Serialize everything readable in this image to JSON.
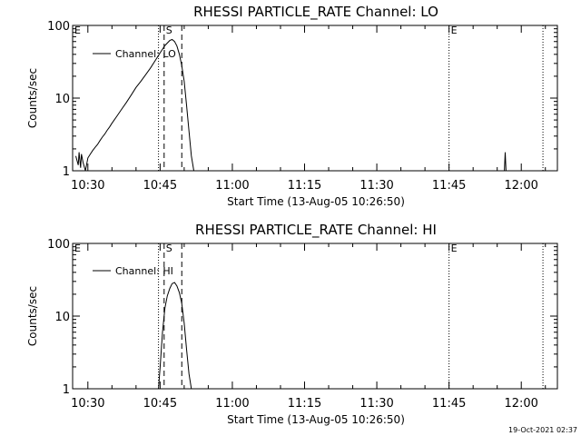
{
  "colors": {
    "background": "#ffffff",
    "foreground": "#000000"
  },
  "footer": {
    "timestamp": "19-Oct-2021 02:37"
  },
  "chart_data": [
    {
      "type": "line",
      "title": "RHESSI PARTICLE_RATE Channel: LO",
      "xlabel": "Start Time (13-Aug-05 10:26:50)",
      "ylabel": "Counts/sec",
      "y_scale": "log",
      "ylim": [
        1,
        100
      ],
      "xlim": [
        "10:26:50",
        "12:07:30"
      ],
      "x_ticks": [
        "10:30",
        "10:45",
        "11:00",
        "11:15",
        "11:30",
        "11:45",
        "12:00"
      ],
      "y_ticks": [
        "1",
        "10",
        "100"
      ],
      "legend": "Channel: LO",
      "legend_position": "top-left",
      "grid": false,
      "markers": [
        {
          "label": "E",
          "time": "10:26:50",
          "style": "dotted"
        },
        {
          "label": "",
          "time": "10:44:40",
          "style": "dotted"
        },
        {
          "label": "S",
          "time": "10:45:50",
          "style": "dashed"
        },
        {
          "label": "",
          "time": "10:49:30",
          "style": "dashed"
        },
        {
          "label": "E",
          "time": "11:45:00",
          "style": "dotted"
        },
        {
          "label": "",
          "time": "12:04:30",
          "style": "dotted"
        }
      ],
      "series": [
        {
          "name": "",
          "x": [
            "10:27:30",
            "10:28:00",
            "10:28:10",
            "10:28:30",
            "10:28:40",
            "10:29:00",
            "10:29:30",
            "10:30:00",
            "10:30:30",
            "10:31:00",
            "10:31:30",
            "10:32:00",
            "10:32:30",
            "10:33:00",
            "10:33:30",
            "10:34:00",
            "10:34:30",
            "10:35:00",
            "10:36:00",
            "10:37:00",
            "10:38:00",
            "10:39:00",
            "10:40:00",
            "10:41:00",
            "10:42:00",
            "10:43:00",
            "10:44:00",
            "10:45:00",
            "10:46:00",
            "10:47:00",
            "10:47:30",
            "10:48:00",
            "10:48:30",
            "10:49:00",
            "10:49:30",
            "10:50:00",
            "10:50:30",
            "10:51:00",
            "10:51:30",
            "10:52:00"
          ],
          "y": [
            1.6,
            1.2,
            1.8,
            1.1,
            1.7,
            1.3,
            1.0,
            1.5,
            1.7,
            1.9,
            2.1,
            2.3,
            2.6,
            2.9,
            3.2,
            3.6,
            4.0,
            4.5,
            5.6,
            7.0,
            8.7,
            11.0,
            14.0,
            17.0,
            21.0,
            26.0,
            33.0,
            42.0,
            53.0,
            62.0,
            64.0,
            60.0,
            52.0,
            40.0,
            28.0,
            17.0,
            8.0,
            3.5,
            1.6,
            1.0
          ]
        },
        {
          "name": "",
          "x": [
            "11:56:30",
            "11:56:40",
            "11:56:50"
          ],
          "y": [
            1.0,
            1.8,
            1.0
          ]
        }
      ]
    },
    {
      "type": "line",
      "title": "RHESSI PARTICLE_RATE Channel: HI",
      "xlabel": "Start Time (13-Aug-05 10:26:50)",
      "ylabel": "Counts/sec",
      "y_scale": "log",
      "ylim": [
        1,
        100
      ],
      "xlim": [
        "10:26:50",
        "12:07:30"
      ],
      "x_ticks": [
        "10:30",
        "10:45",
        "11:00",
        "11:15",
        "11:30",
        "11:45",
        "12:00"
      ],
      "y_ticks": [
        "1",
        "10",
        "100"
      ],
      "legend": "Channel: HI",
      "legend_position": "top-left",
      "grid": false,
      "markers": [
        {
          "label": "E",
          "time": "10:26:50",
          "style": "dotted"
        },
        {
          "label": "",
          "time": "10:44:40",
          "style": "dotted"
        },
        {
          "label": "S",
          "time": "10:45:50",
          "style": "dashed"
        },
        {
          "label": "",
          "time": "10:49:30",
          "style": "dashed"
        },
        {
          "label": "E",
          "time": "11:45:00",
          "style": "dotted"
        },
        {
          "label": "",
          "time": "12:04:30",
          "style": "dotted"
        }
      ],
      "series": [
        {
          "name": "",
          "x": [
            "10:44:40",
            "10:45:00",
            "10:45:30",
            "10:46:00",
            "10:46:30",
            "10:47:00",
            "10:47:30",
            "10:48:00",
            "10:48:30",
            "10:49:00",
            "10:49:30",
            "10:50:00",
            "10:50:30",
            "10:51:00",
            "10:51:30"
          ],
          "y": [
            1.0,
            2.0,
            6.0,
            13.0,
            19.0,
            24.0,
            28.0,
            29.0,
            26.0,
            21.0,
            15.0,
            8.0,
            3.5,
            1.6,
            1.0
          ]
        }
      ]
    }
  ]
}
